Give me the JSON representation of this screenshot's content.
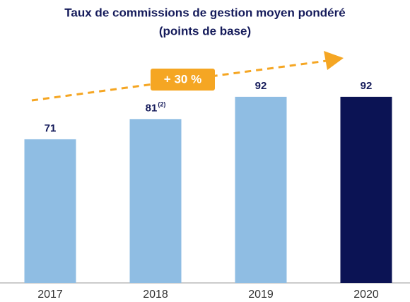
{
  "chart_data": {
    "type": "bar",
    "title": "Taux de commissions de gestion moyen pondéré",
    "subtitle": "(points de base)",
    "categories": [
      "2017",
      "2018",
      "2019",
      "2020"
    ],
    "values": [
      71,
      81,
      92,
      92
    ],
    "label_notes": [
      null,
      "(2)",
      null,
      null
    ],
    "colors": [
      "#8fbde3",
      "#8fbde3",
      "#8fbde3",
      "#0b1354"
    ],
    "annotation": "+ 30 %",
    "annotation_color": "#f5a623"
  }
}
